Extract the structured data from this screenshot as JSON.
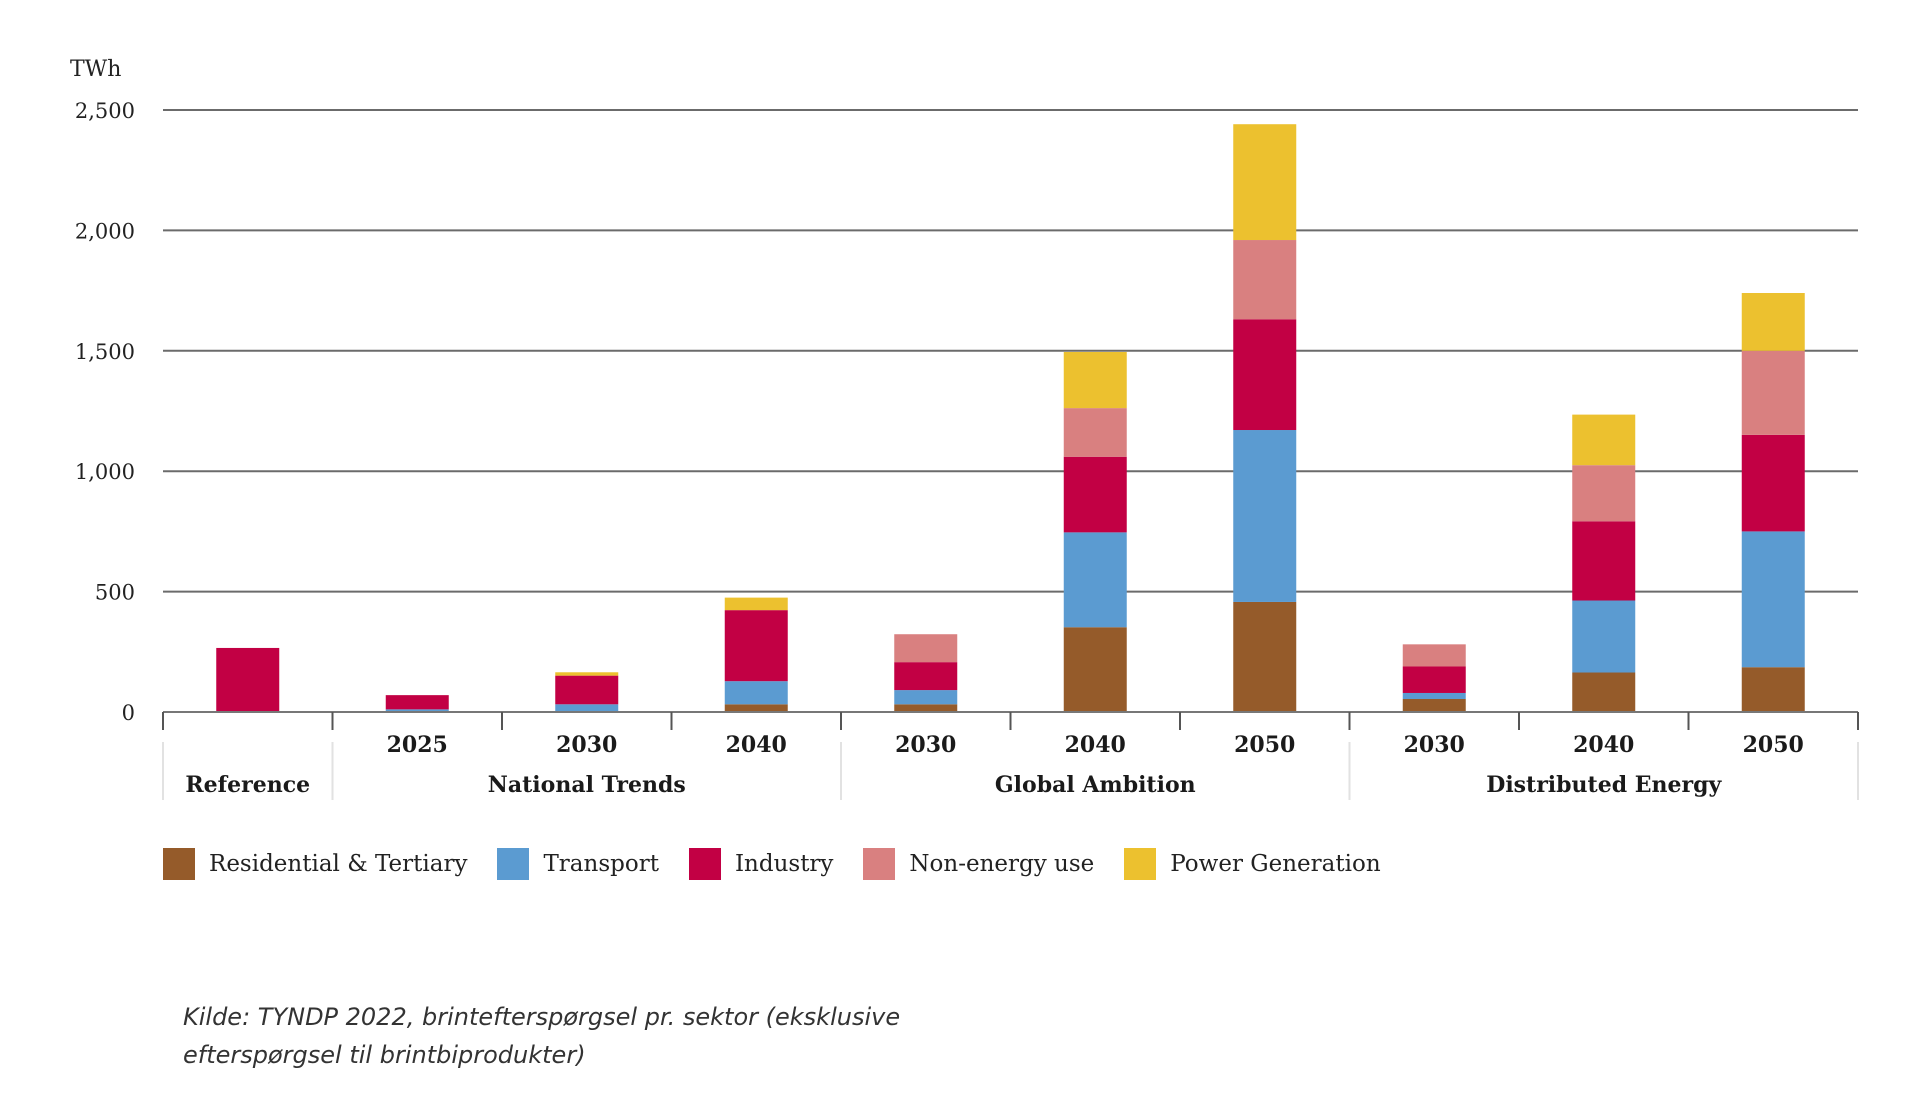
{
  "chart_data": {
    "type": "bar",
    "stacked": true,
    "title": "",
    "ylabel": "TWh",
    "xlabel": "",
    "ylim": [
      0,
      2500
    ],
    "yticks": [
      0,
      500,
      1000,
      1500,
      2000,
      2500
    ],
    "ytick_labels": [
      "0",
      "500",
      "1,000",
      "1,500",
      "2,000",
      "2,500"
    ],
    "grid": true,
    "legend_position": "bottom-left",
    "groups": [
      {
        "label": "Reference",
        "categories": [
          ""
        ]
      },
      {
        "label": "National Trends",
        "categories": [
          "2025",
          "2030",
          "2040"
        ]
      },
      {
        "label": "Global Ambition",
        "categories": [
          "2030",
          "2040",
          "2050"
        ]
      },
      {
        "label": "Distributed Energy",
        "categories": [
          "2030",
          "2040",
          "2050"
        ]
      }
    ],
    "categories": [
      "Reference",
      "National Trends 2025",
      "National Trends 2030",
      "National Trends 2040",
      "Global Ambition 2030",
      "Global Ambition 2040",
      "Global Ambition 2050",
      "Distributed Energy 2030",
      "Distributed Energy 2040",
      "Distributed Energy 2050"
    ],
    "series": [
      {
        "name": "Residential & Tertiary",
        "color": "#955b2a",
        "values": [
          0,
          0,
          0,
          32,
          32,
          352,
          457,
          54,
          164,
          186
        ]
      },
      {
        "name": "Transport",
        "color": "#5b9bd1",
        "values": [
          0,
          11,
          32,
          96,
          59,
          394,
          714,
          25,
          299,
          564
        ]
      },
      {
        "name": "Industry",
        "color": "#c20044",
        "values": [
          266,
          59,
          119,
          295,
          116,
          314,
          460,
          110,
          329,
          401
        ]
      },
      {
        "name": "Non-energy use",
        "color": "#d98080",
        "values": [
          0,
          0,
          0,
          0,
          116,
          202,
          329,
          92,
          233,
          349
        ]
      },
      {
        "name": "Power Generation",
        "color": "#ecc12f",
        "values": [
          0,
          0,
          14,
          52,
          0,
          233,
          481,
          0,
          210,
          240
        ]
      }
    ]
  },
  "source_note": {
    "line1": "Kilde: TYNDP 2022, brintefterspørgsel pr. sektor (eksklusive",
    "line2": "efterspørgsel til brintbiprodukter)"
  }
}
